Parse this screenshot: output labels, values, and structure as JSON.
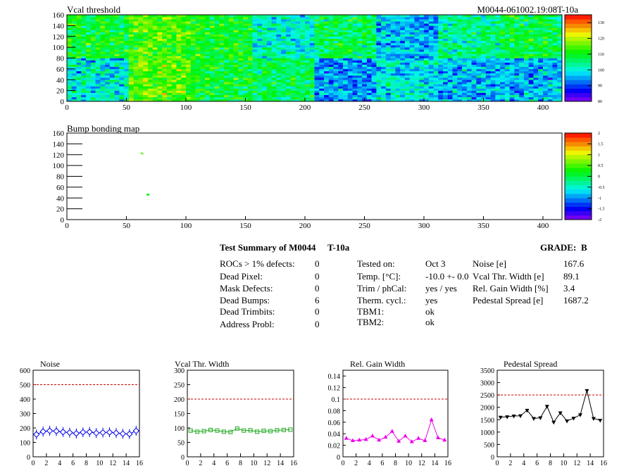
{
  "header": {
    "vcal_title": "Vcal threshold",
    "module_id": "M0044-061002.19:08T-10a",
    "bump_title": "Bump bonding map"
  },
  "colors": {
    "reference_line": "#cc0000",
    "noise": "#0000ee",
    "vcal_width": "#22aa22",
    "gain_width": "#ee00ee",
    "pedestal": "#000000"
  },
  "summary": {
    "title": "Test Summary of M0044",
    "test_tag": "T-10a",
    "grade_label": "GRADE:",
    "grade": "B",
    "defects": [
      {
        "label": "ROCs > 1% defects:",
        "value": "0"
      },
      {
        "label": "Dead Pixel:",
        "value": "0"
      },
      {
        "label": "Mask Defects:",
        "value": "0"
      },
      {
        "label": "Dead Bumps:",
        "value": "6"
      },
      {
        "label": "Dead Trimbits:",
        "value": "0"
      },
      {
        "label": "Address Probl:",
        "value": "0"
      }
    ],
    "conditions": [
      {
        "label": "Tested on:",
        "value": "Oct 3"
      },
      {
        "label": "Temp. [°C]:",
        "value": "-10.0 +- 0.0"
      },
      {
        "label": "Trim / phCal:",
        "value": "yes / yes"
      },
      {
        "label": "Therm. cycl.:",
        "value": "yes"
      },
      {
        "label": "TBM1:",
        "value": "ok"
      },
      {
        "label": "TBM2:",
        "value": "ok"
      }
    ],
    "results": [
      {
        "label": "Noise [e]",
        "value": "167.6"
      },
      {
        "label": "Vcal Thr. Width [e]",
        "value": "89.1"
      },
      {
        "label": "Rel. Gain Width [%]",
        "value": "3.4"
      },
      {
        "label": "Pedestal Spread [e]",
        "value": "1687.2"
      }
    ]
  },
  "chart_data": [
    {
      "type": "heatmap",
      "title": "Vcal threshold",
      "xlim": [
        0,
        416
      ],
      "ylim": [
        0,
        160
      ],
      "x_ticks": [
        0,
        50,
        100,
        150,
        200,
        250,
        300,
        350,
        400
      ],
      "y_ticks": [
        0,
        20,
        40,
        60,
        80,
        100,
        120,
        140,
        160
      ],
      "palette_ticks": [
        80,
        90,
        100,
        110,
        120,
        130
      ],
      "zlim": [
        80,
        135
      ],
      "roc_means": {
        "top_row": [
          109,
          114,
          110,
          101,
          107,
          96,
          104,
          108
        ],
        "bottom_row": [
          100,
          115,
          109,
          107,
          94,
          100,
          96,
          96
        ]
      }
    },
    {
      "type": "heatmap",
      "title": "Bump bonding map",
      "xlim": [
        0,
        416
      ],
      "ylim": [
        0,
        160
      ],
      "x_ticks": [
        0,
        50,
        100,
        150,
        200,
        250,
        300,
        350,
        400
      ],
      "y_ticks": [
        0,
        20,
        40,
        60,
        80,
        100,
        120,
        140,
        160
      ],
      "palette_ticks": [
        -2,
        -1.5,
        -1,
        -0.5,
        0,
        0.5,
        1,
        1.5,
        2
      ],
      "zlim": [
        -2,
        2
      ],
      "points": [
        {
          "x": 62,
          "y": 123,
          "z": 0.5
        },
        {
          "x": 63,
          "y": 122,
          "z": 0.5
        },
        {
          "x": 67,
          "y": 47,
          "z": 0.3
        },
        {
          "x": 68,
          "y": 47,
          "z": 0.3
        },
        {
          "x": 67,
          "y": 46,
          "z": 0.3
        },
        {
          "x": 68,
          "y": 46,
          "z": 0.3
        }
      ]
    },
    {
      "type": "line",
      "title": "Noise",
      "xlim": [
        0,
        16
      ],
      "ylim": [
        0,
        600
      ],
      "x_ticks": [
        0,
        2,
        4,
        6,
        8,
        10,
        12,
        14,
        16
      ],
      "y_ticks": [
        0,
        100,
        200,
        300,
        400,
        500,
        600
      ],
      "reference": 500,
      "marker": "diamond",
      "x": [
        0.5,
        1.5,
        2.5,
        3.5,
        4.5,
        5.5,
        6.5,
        7.5,
        8.5,
        9.5,
        10.5,
        11.5,
        12.5,
        13.5,
        14.5,
        15.5
      ],
      "values": [
        155,
        175,
        180,
        178,
        172,
        168,
        162,
        170,
        172,
        165,
        168,
        170,
        165,
        160,
        158,
        180
      ]
    },
    {
      "type": "line",
      "title": "Vcal Thr. Width",
      "xlim": [
        0,
        16
      ],
      "ylim": [
        0,
        300
      ],
      "x_ticks": [
        0,
        2,
        4,
        6,
        8,
        10,
        12,
        14,
        16
      ],
      "y_ticks": [
        0,
        50,
        100,
        150,
        200,
        250,
        300
      ],
      "reference": 200,
      "marker": "square",
      "x": [
        0.5,
        1.5,
        2.5,
        3.5,
        4.5,
        5.5,
        6.5,
        7.5,
        8.5,
        9.5,
        10.5,
        11.5,
        12.5,
        13.5,
        14.5,
        15.5
      ],
      "values": [
        91,
        87,
        89,
        93,
        91,
        87,
        86,
        98,
        91,
        92,
        87,
        90,
        89,
        92,
        93,
        94
      ]
    },
    {
      "type": "line",
      "title": "Rel. Gain Width",
      "xlim": [
        0,
        16
      ],
      "ylim": [
        0,
        0.15
      ],
      "x_ticks": [
        0,
        2,
        4,
        6,
        8,
        10,
        12,
        14,
        16
      ],
      "y_ticks": [
        0,
        0.02,
        0.04,
        0.06,
        0.08,
        0.1,
        0.12,
        0.14
      ],
      "reference": 0.1,
      "marker": "triangle-up",
      "x": [
        0.5,
        1.5,
        2.5,
        3.5,
        4.5,
        5.5,
        6.5,
        7.5,
        8.5,
        9.5,
        10.5,
        11.5,
        12.5,
        13.5,
        14.5,
        15.5
      ],
      "values": [
        0.032,
        0.028,
        0.029,
        0.03,
        0.036,
        0.029,
        0.034,
        0.044,
        0.027,
        0.036,
        0.026,
        0.032,
        0.028,
        0.064,
        0.033,
        0.029
      ]
    },
    {
      "type": "line",
      "title": "Pedestal Spread",
      "xlim": [
        0,
        16
      ],
      "ylim": [
        0,
        3500
      ],
      "x_ticks": [
        0,
        2,
        4,
        6,
        8,
        10,
        12,
        14,
        16
      ],
      "y_ticks": [
        0,
        500,
        1000,
        1500,
        2000,
        2500,
        3000,
        3500
      ],
      "reference": 2500,
      "marker": "triangle-down",
      "x": [
        0.5,
        1.5,
        2.5,
        3.5,
        4.5,
        5.5,
        6.5,
        7.5,
        8.5,
        9.5,
        10.5,
        11.5,
        12.5,
        13.5,
        14.5,
        15.5
      ],
      "values": [
        1600,
        1620,
        1650,
        1660,
        1880,
        1550,
        1580,
        2040,
        1400,
        1780,
        1450,
        1560,
        1700,
        2680,
        1550,
        1480
      ]
    }
  ]
}
